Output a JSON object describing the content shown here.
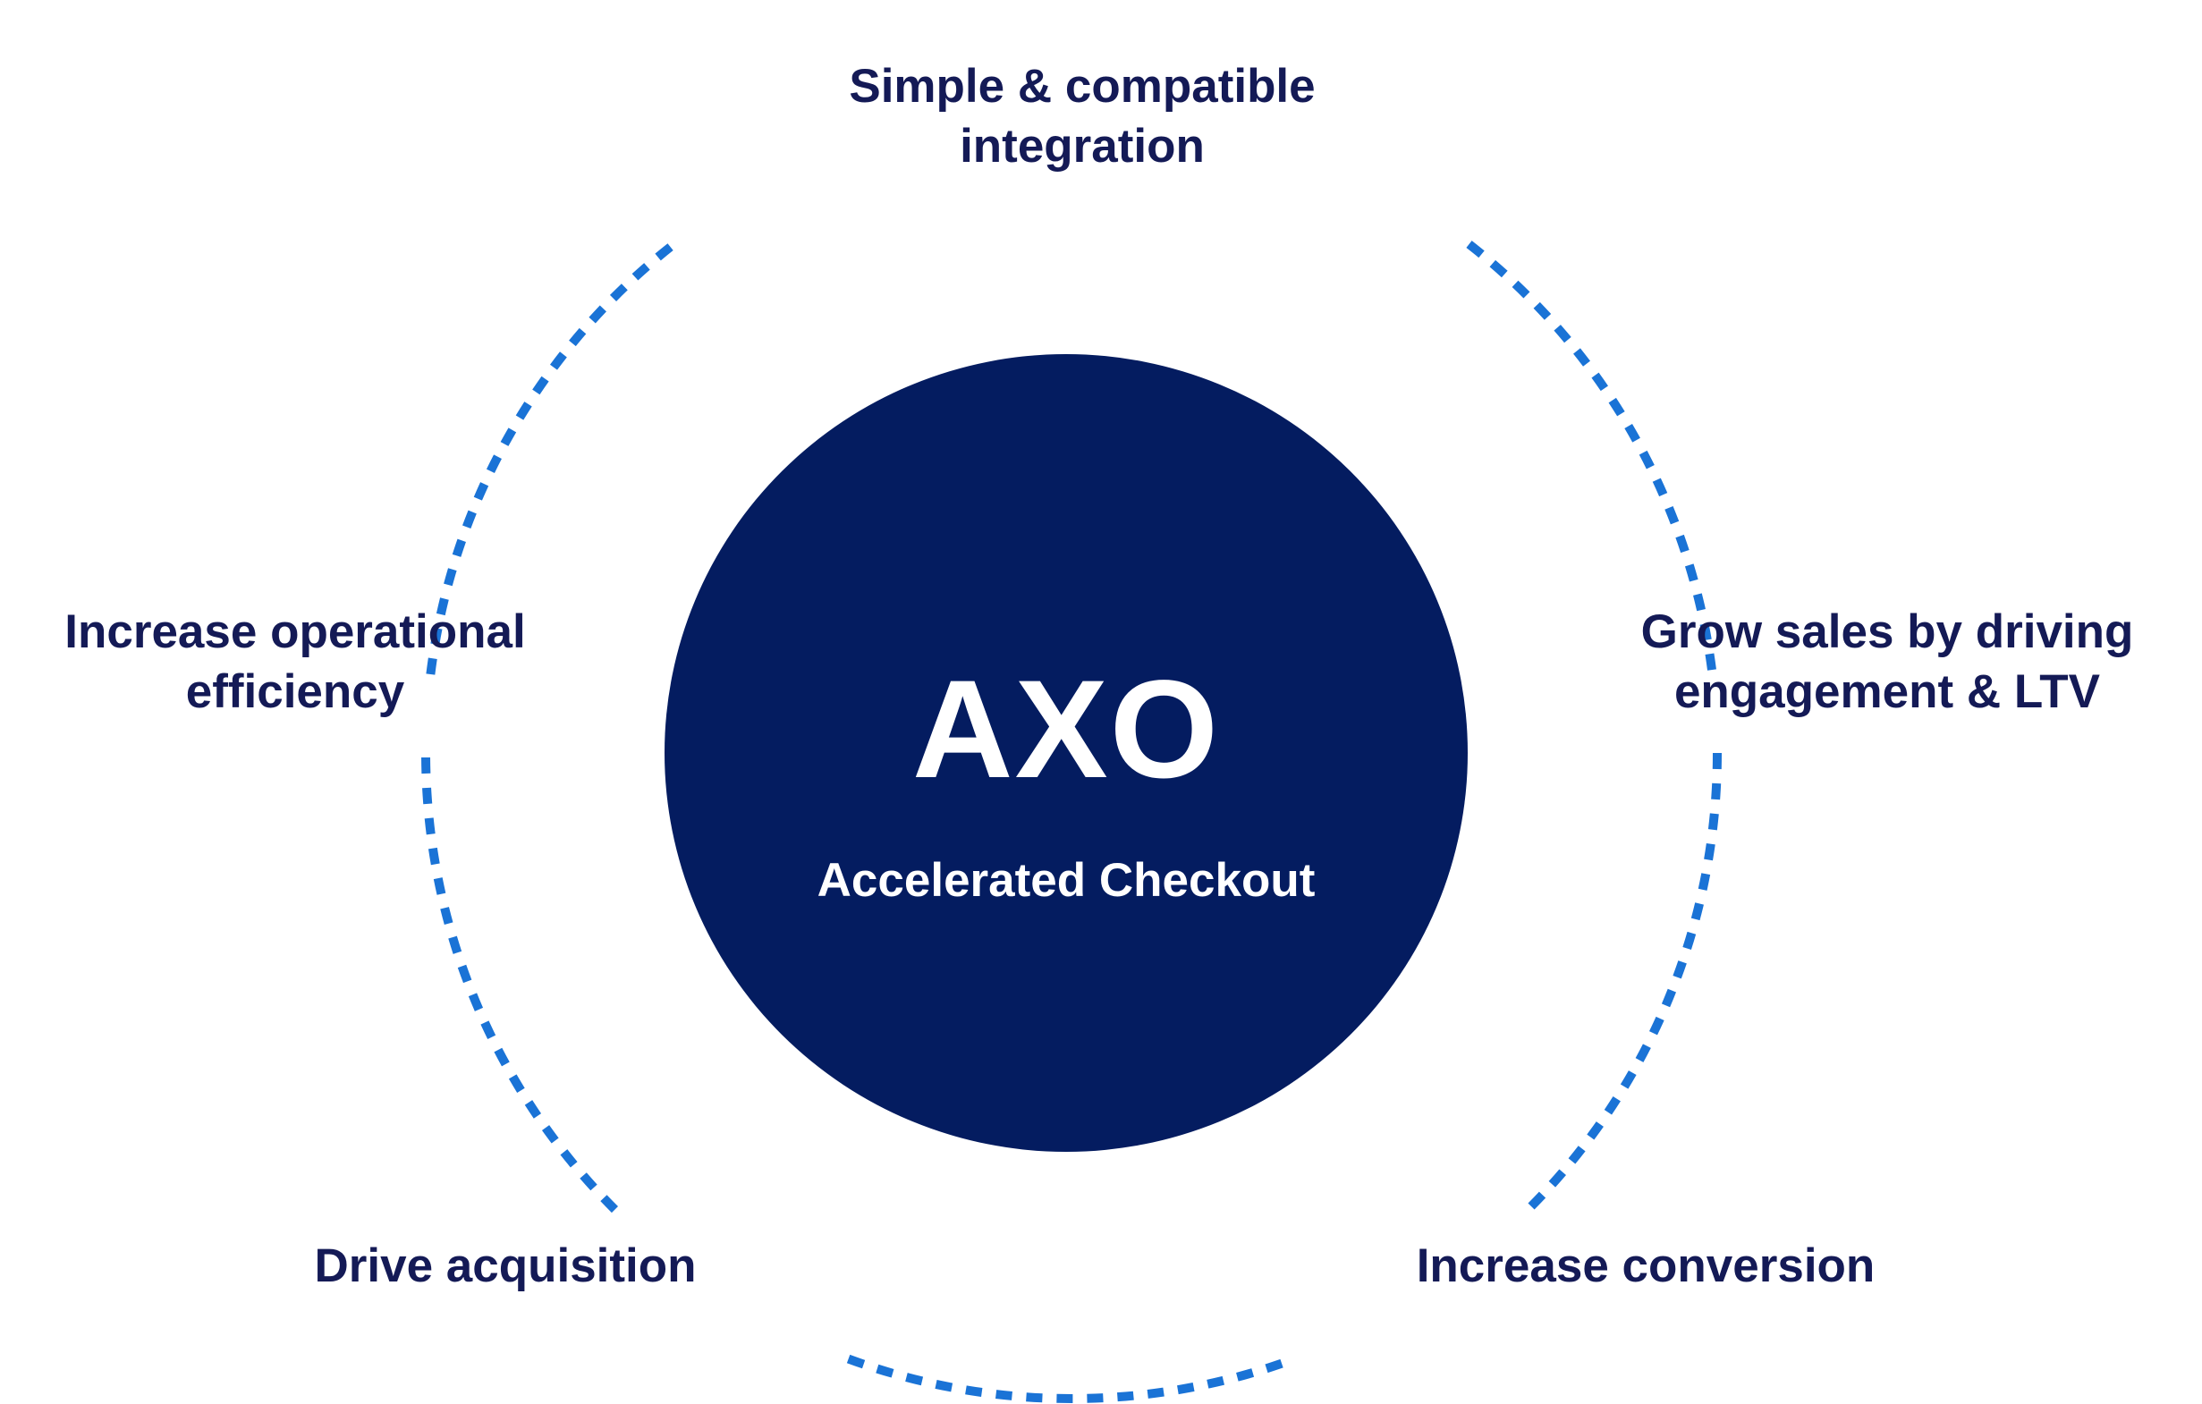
{
  "center": {
    "title": "AXO",
    "subtitle": "Accelerated Checkout",
    "fill_color": "#041c60",
    "text_color": "#ffffff"
  },
  "ring": {
    "style": "dashed",
    "color": "#1a73d6"
  },
  "benefits": {
    "top": {
      "line1": "Simple & compatible",
      "line2": "integration"
    },
    "left": {
      "line1": "Increase operational",
      "line2": "efficiency"
    },
    "right": {
      "line1": "Grow sales by driving",
      "line2": "engagement & LTV"
    },
    "bottom_left": {
      "line1": "Drive acquisition"
    },
    "bottom_right": {
      "line1": "Increase conversion"
    }
  },
  "label_color": "#141a56"
}
